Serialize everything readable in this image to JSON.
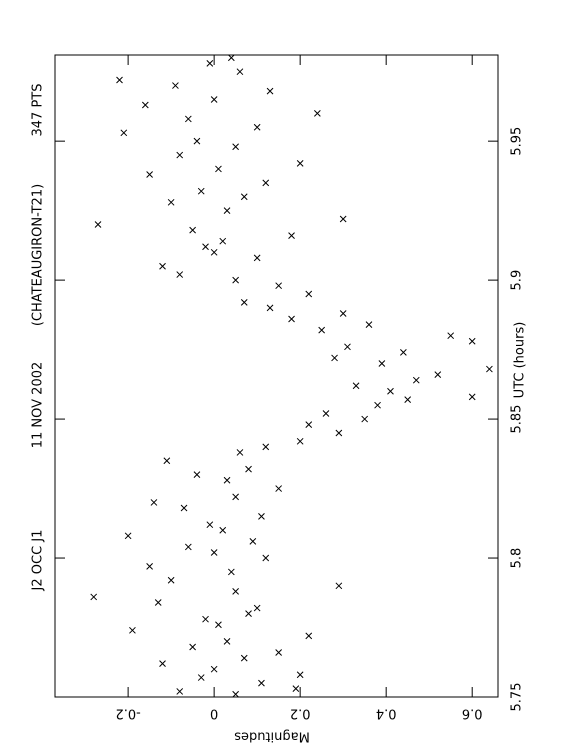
{
  "chart_data": {
    "type": "scatter",
    "title_parts": [
      "J2 OCC J1",
      "11 NOV 2002",
      "(CHATEAUGIRON-T21)",
      "347 PTS"
    ],
    "x_label": "UTC (hours)",
    "y_label": "Magnitudes",
    "xlim": [
      5.75,
      5.981
    ],
    "ylim": [
      -0.37,
      0.66
    ],
    "xticks": [
      5.75,
      5.8,
      5.85,
      5.9,
      5.95
    ],
    "yticks": [
      -0.2,
      0,
      0.2,
      0.4,
      0.6
    ],
    "color": "#000000",
    "x": [
      5.751,
      5.752,
      5.753,
      5.755,
      5.757,
      5.758,
      5.76,
      5.762,
      5.764,
      5.766,
      5.768,
      5.77,
      5.772,
      5.774,
      5.776,
      5.778,
      5.78,
      5.782,
      5.784,
      5.786,
      5.788,
      5.79,
      5.792,
      5.795,
      5.797,
      5.8,
      5.802,
      5.804,
      5.806,
      5.808,
      5.81,
      5.812,
      5.815,
      5.818,
      5.82,
      5.822,
      5.825,
      5.828,
      5.83,
      5.832,
      5.835,
      5.838,
      5.84,
      5.842,
      5.845,
      5.848,
      5.85,
      5.852,
      5.855,
      5.857,
      5.858,
      5.86,
      5.862,
      5.864,
      5.866,
      5.868,
      5.87,
      5.872,
      5.874,
      5.876,
      5.878,
      5.88,
      5.882,
      5.884,
      5.886,
      5.888,
      5.89,
      5.892,
      5.895,
      5.898,
      5.9,
      5.902,
      5.905,
      5.908,
      5.91,
      5.912,
      5.914,
      5.916,
      5.918,
      5.92,
      5.922,
      5.925,
      5.928,
      5.93,
      5.932,
      5.935,
      5.938,
      5.94,
      5.942,
      5.945,
      5.948,
      5.95,
      5.953,
      5.955,
      5.958,
      5.96,
      5.963,
      5.965,
      5.968,
      5.97,
      5.972,
      5.975,
      5.978,
      5.98
    ],
    "values": [
      0.05,
      -0.08,
      0.19,
      0.11,
      -0.03,
      0.2,
      0.0,
      -0.12,
      0.07,
      0.15,
      -0.05,
      0.03,
      0.22,
      -0.19,
      0.01,
      -0.02,
      0.08,
      0.1,
      -0.13,
      -0.28,
      0.05,
      0.29,
      -0.1,
      0.04,
      -0.15,
      0.12,
      0.0,
      -0.06,
      0.09,
      -0.2,
      0.02,
      -0.01,
      0.11,
      -0.07,
      -0.14,
      0.05,
      0.15,
      0.03,
      -0.04,
      0.08,
      -0.11,
      0.06,
      0.12,
      0.2,
      0.29,
      0.22,
      0.35,
      0.26,
      0.38,
      0.45,
      0.6,
      0.41,
      0.33,
      0.47,
      0.52,
      0.64,
      0.39,
      0.28,
      0.44,
      0.31,
      0.6,
      0.55,
      0.25,
      0.36,
      0.18,
      0.3,
      0.13,
      0.07,
      0.22,
      0.15,
      0.05,
      -0.08,
      -0.12,
      0.1,
      0.0,
      -0.02,
      0.02,
      0.18,
      -0.05,
      -0.27,
      0.3,
      0.03,
      -0.1,
      0.07,
      -0.03,
      0.12,
      -0.15,
      0.01,
      0.2,
      -0.08,
      0.05,
      -0.04,
      -0.21,
      0.1,
      -0.06,
      0.24,
      -0.16,
      0.0,
      0.13,
      -0.09,
      -0.22,
      0.06,
      -0.01,
      0.04
    ]
  }
}
